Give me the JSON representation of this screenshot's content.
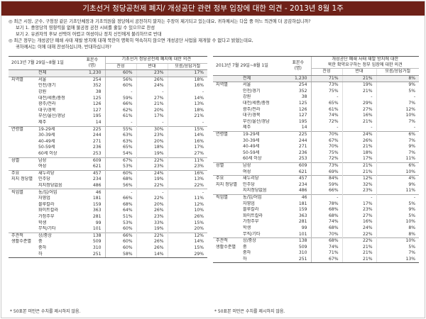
{
  "title": "기초선거 정당공천제 폐지/ 개성공단 관련 정부 입장에 대한 의견 - 2013년 8월 1주",
  "questions": {
    "q1": "◎ 최근 시장, 군수, 구청장 같은 기초단체장과 기초의원을 정당에서 공천하지 말자는 주장이 제기되고 있는데요, 귀하께서는 다음 중 어느 의견에 더 공감하십니까?",
    "q1_opt1": "보기 1. 중앙당의 영향력을 없애 불공정 공천 시비를 줄일 수 있으므로 찬성",
    "q1_opt2": "보기 2. 유권자의 후보 선택이 어렵고 여성이나 정치 신인에게 불리하므로 반대",
    "q2": "◎ 최근 정부는 개성공단 폐쇄 사태 재발 방지에 대해 북한이 명확히 약속하지 않으면 개성공단 사업을 재개할 수 없다고 밝혔는데요,",
    "q2_cont": "귀하께서는 이에 대해 찬성하십니까, 반대하십니까?"
  },
  "left_table": {
    "period": "2013년 7월 29일~8월 1일",
    "n_header": [
      "표본수",
      "(명)"
    ],
    "question_header": "기초선거 정당공천제 폐지에 대한 의견",
    "col_headers": [
      "찬성",
      "반대",
      "모름/응답거절"
    ],
    "rows": [
      {
        "g": "",
        "s": "전체",
        "n": "1,230",
        "v": [
          "60%",
          "23%",
          "17%"
        ]
      },
      {
        "g": "지역별",
        "s": "서울",
        "n": "254",
        "v": [
          "56%",
          "26%",
          "18%"
        ]
      },
      {
        "g": "",
        "s": "인천/경기",
        "n": "352",
        "v": [
          "60%",
          "24%",
          "16%"
        ]
      },
      {
        "g": "",
        "s": "강원",
        "n": "38",
        "v": [
          "-",
          "-",
          "-"
        ]
      },
      {
        "g": "",
        "s": "대전/세종/충청",
        "n": "125",
        "v": [
          "59%",
          "27%",
          "14%"
        ]
      },
      {
        "g": "",
        "s": "광주/전라",
        "n": "126",
        "v": [
          "66%",
          "21%",
          "13%"
        ]
      },
      {
        "g": "",
        "s": "대구/경북",
        "n": "127",
        "v": [
          "62%",
          "20%",
          "18%"
        ]
      },
      {
        "g": "",
        "s": "부산/울산/경남",
        "n": "195",
        "v": [
          "61%",
          "17%",
          "21%"
        ]
      },
      {
        "g": "",
        "s": "제주",
        "n": "14",
        "v": [
          "-",
          "-",
          "-"
        ]
      },
      {
        "g": "연령별",
        "s": "19-29세",
        "n": "225",
        "v": [
          "55%",
          "30%",
          "15%"
        ]
      },
      {
        "g": "",
        "s": "30-39세",
        "n": "244",
        "v": [
          "63%",
          "23%",
          "14%"
        ]
      },
      {
        "g": "",
        "s": "40-49세",
        "n": "271",
        "v": [
          "63%",
          "20%",
          "16%"
        ]
      },
      {
        "g": "",
        "s": "50-59세",
        "n": "236",
        "v": [
          "65%",
          "18%",
          "17%"
        ]
      },
      {
        "g": "",
        "s": "60세 이상",
        "n": "253",
        "v": [
          "54%",
          "19%",
          "27%"
        ]
      },
      {
        "g": "성별",
        "s": "남성",
        "n": "609",
        "v": [
          "67%",
          "22%",
          "11%"
        ]
      },
      {
        "g": "",
        "s": "여성",
        "n": "621",
        "v": [
          "53%",
          "23%",
          "23%"
        ]
      },
      {
        "g": "주요",
        "s": "새누리당",
        "n": "457",
        "v": [
          "60%",
          "24%",
          "16%"
        ]
      },
      {
        "g": "지지 정당별",
        "s": "민주당",
        "n": "234",
        "v": [
          "68%",
          "19%",
          "13%"
        ]
      },
      {
        "g": "",
        "s": "지지정당없음",
        "n": "486",
        "v": [
          "56%",
          "22%",
          "22%"
        ]
      },
      {
        "g": "직업별",
        "s": "농/임/어업",
        "n": "46",
        "v": [
          "-",
          "-",
          "-"
        ]
      },
      {
        "g": "",
        "s": "자영업",
        "n": "181",
        "v": [
          "66%",
          "22%",
          "11%"
        ]
      },
      {
        "g": "",
        "s": "블루칼라",
        "n": "159",
        "v": [
          "68%",
          "20%",
          "12%"
        ]
      },
      {
        "g": "",
        "s": "화이트칼라",
        "n": "363",
        "v": [
          "64%",
          "26%",
          "10%"
        ]
      },
      {
        "g": "",
        "s": "가정주부",
        "n": "281",
        "v": [
          "51%",
          "23%",
          "26%"
        ]
      },
      {
        "g": "",
        "s": "학생",
        "n": "99",
        "v": [
          "53%",
          "33%",
          "15%"
        ]
      },
      {
        "g": "",
        "s": "무직/기타",
        "n": "101",
        "v": [
          "60%",
          "19%",
          "20%"
        ]
      },
      {
        "g": "주관적",
        "s": "상/중상",
        "n": "138",
        "v": [
          "66%",
          "22%",
          "12%"
        ]
      },
      {
        "g": "생활수준별",
        "s": "중",
        "n": "509",
        "v": [
          "60%",
          "26%",
          "14%"
        ]
      },
      {
        "g": "",
        "s": "중하",
        "n": "310",
        "v": [
          "60%",
          "26%",
          "15%"
        ]
      },
      {
        "g": "",
        "s": "하",
        "n": "251",
        "v": [
          "58%",
          "14%",
          "29%"
        ]
      }
    ],
    "note": "* 50표본 미만은 수치를 제시하지 않음."
  },
  "right_table": {
    "period": "2013년 7월 29일~8월 1일",
    "n_header": [
      "표본수",
      "(명)"
    ],
    "question_header": [
      "개성공단 폐쇄 사태 재발 방지에 대한",
      "북한 확약요구하는 정부 입장에 대한 의견"
    ],
    "col_headers": [
      "찬성",
      "반대",
      "모름/응답거절"
    ],
    "rows": [
      {
        "g": "",
        "s": "전체",
        "n": "1,230",
        "v": [
          "71%",
          "21%",
          "8%"
        ]
      },
      {
        "g": "지역별",
        "s": "서울",
        "n": "254",
        "v": [
          "73%",
          "19%",
          "9%"
        ]
      },
      {
        "g": "",
        "s": "인천/경기",
        "n": "352",
        "v": [
          "75%",
          "21%",
          "5%"
        ]
      },
      {
        "g": "",
        "s": "강원",
        "n": "38",
        "v": [
          "-",
          "-",
          "-"
        ]
      },
      {
        "g": "",
        "s": "대전/세종/충청",
        "n": "125",
        "v": [
          "65%",
          "29%",
          "7%"
        ]
      },
      {
        "g": "",
        "s": "광주/전라",
        "n": "126",
        "v": [
          "61%",
          "27%",
          "12%"
        ]
      },
      {
        "g": "",
        "s": "대구/경북",
        "n": "127",
        "v": [
          "74%",
          "16%",
          "10%"
        ]
      },
      {
        "g": "",
        "s": "부산/울산/경남",
        "n": "195",
        "v": [
          "72%",
          "21%",
          "7%"
        ]
      },
      {
        "g": "",
        "s": "제주",
        "n": "14",
        "v": [
          "-",
          "-",
          "-"
        ]
      },
      {
        "g": "연령별",
        "s": "19-29세",
        "n": "225",
        "v": [
          "70%",
          "24%",
          "6%"
        ]
      },
      {
        "g": "",
        "s": "30-39세",
        "n": "244",
        "v": [
          "67%",
          "26%",
          "7%"
        ]
      },
      {
        "g": "",
        "s": "40-49세",
        "n": "271",
        "v": [
          "70%",
          "21%",
          "9%"
        ]
      },
      {
        "g": "",
        "s": "50-59세",
        "n": "236",
        "v": [
          "75%",
          "18%",
          "7%"
        ]
      },
      {
        "g": "",
        "s": "60세 이상",
        "n": "253",
        "v": [
          "72%",
          "17%",
          "11%"
        ]
      },
      {
        "g": "성별",
        "s": "남성",
        "n": "609",
        "v": [
          "73%",
          "21%",
          "6%"
        ]
      },
      {
        "g": "",
        "s": "여성",
        "n": "621",
        "v": [
          "69%",
          "21%",
          "10%"
        ]
      },
      {
        "g": "주요",
        "s": "새누리당",
        "n": "457",
        "v": [
          "84%",
          "12%",
          "4%"
        ]
      },
      {
        "g": "지지 정당별",
        "s": "민주당",
        "n": "234",
        "v": [
          "59%",
          "32%",
          "9%"
        ]
      },
      {
        "g": "",
        "s": "지지정당없음",
        "n": "486",
        "v": [
          "66%",
          "23%",
          "11%"
        ]
      },
      {
        "g": "직업별",
        "s": "농/임/어업",
        "n": "46",
        "v": [
          "-",
          "-",
          "-"
        ]
      },
      {
        "g": "",
        "s": "자영업",
        "n": "181",
        "v": [
          "78%",
          "17%",
          "5%"
        ]
      },
      {
        "g": "",
        "s": "블루칼라",
        "n": "159",
        "v": [
          "68%",
          "23%",
          "9%"
        ]
      },
      {
        "g": "",
        "s": "화이트칼라",
        "n": "363",
        "v": [
          "68%",
          "27%",
          "5%"
        ]
      },
      {
        "g": "",
        "s": "가정주부",
        "n": "281",
        "v": [
          "74%",
          "16%",
          "10%"
        ]
      },
      {
        "g": "",
        "s": "학생",
        "n": "99",
        "v": [
          "68%",
          "24%",
          "8%"
        ]
      },
      {
        "g": "",
        "s": "무직/기타",
        "n": "101",
        "v": [
          "70%",
          "22%",
          "8%"
        ]
      },
      {
        "g": "주관적",
        "s": "상/중상",
        "n": "138",
        "v": [
          "68%",
          "22%",
          "10%"
        ]
      },
      {
        "g": "생활수준별",
        "s": "중",
        "n": "509",
        "v": [
          "74%",
          "21%",
          "5%"
        ]
      },
      {
        "g": "",
        "s": "중하",
        "n": "310",
        "v": [
          "71%",
          "21%",
          "7%"
        ]
      },
      {
        "g": "",
        "s": "하",
        "n": "251",
        "v": [
          "67%",
          "21%",
          "13%"
        ]
      }
    ],
    "note": "* 50표본 미만은 수치를 제시하지 않음."
  }
}
